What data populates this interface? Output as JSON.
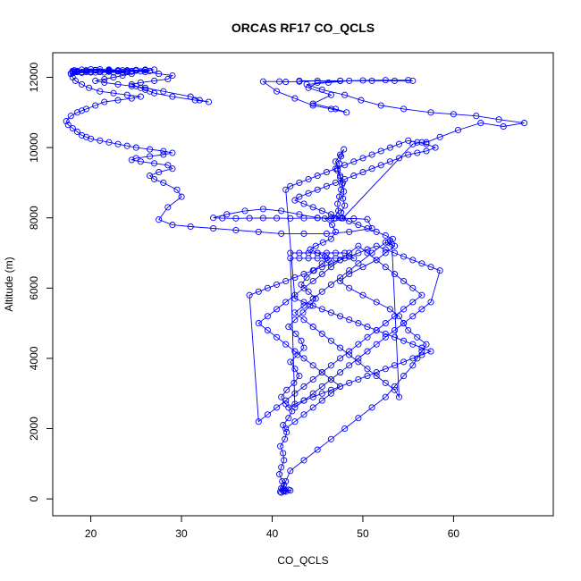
{
  "chart_data": {
    "type": "line",
    "title": "ORCAS RF17 CO_QCLS",
    "xlabel": "CO_QCLS",
    "ylabel": "Altitude (m)",
    "xlim": [
      15.8,
      71.0
    ],
    "ylim": [
      -480,
      12700
    ],
    "x_ticks": [
      20,
      30,
      40,
      50,
      60
    ],
    "y_ticks": [
      0,
      2000,
      4000,
      6000,
      8000,
      10000,
      12000
    ],
    "x_tick_labels": [
      "20",
      "30",
      "40",
      "50",
      "60"
    ],
    "y_tick_labels": [
      "0",
      "2000",
      "4000",
      "6000",
      "8000",
      "10000",
      "12000"
    ],
    "grid": false,
    "legend": "none",
    "colors": {
      "series": "#0000ff",
      "axis": "#000000",
      "background": "#ffffff"
    },
    "series": [
      {
        "marker": "open-circle",
        "x": [
          41.0,
          40.9,
          41.3,
          41.8,
          42.0,
          41.5,
          41.2,
          41.4,
          41.0,
          41.3,
          41.1,
          40.8,
          41.0,
          41.3,
          41.2,
          40.9,
          41.4,
          41.6,
          41.2,
          41.8,
          42.2,
          41.5,
          41.0,
          41.6,
          42.4,
          43.0,
          42.5,
          42.0,
          42.8,
          43.5,
          43.2,
          42.6,
          41.8,
          42.5,
          43.4,
          44.2,
          44.8,
          44.0,
          43.2,
          43.8,
          44.6,
          45.5,
          46.2,
          45.8,
          45.0,
          44.2,
          44.8,
          45.6,
          46.5,
          47.0,
          46.6,
          45.8,
          46.8,
          47.3,
          47.2,
          47.4,
          47.6,
          47.8,
          47.5,
          47.2,
          47.0,
          47.5,
          47.9,
          47.6,
          47.4,
          47.2,
          47.5,
          47.7,
          47.9,
          47.8,
          48.0,
          47.6,
          47.8,
          55.5,
          56.5,
          57.0,
          58.5,
          60.5,
          63.0,
          65.5,
          67.8,
          65.0,
          62.5,
          60.0,
          57.5,
          54.5,
          52.0,
          49.8,
          48.0,
          45.5,
          43.8,
          46.2,
          48.5,
          51.0,
          53.5,
          55.5,
          55.0,
          52.5,
          50.0,
          47.5,
          45.0,
          43.0,
          41.5,
          40.8,
          39.0,
          40.5,
          42.5,
          44.5,
          46.5,
          48.2,
          47.0,
          44.5,
          46.5,
          44.0,
          45.0,
          47.5,
          43.0
        ],
        "y": [
          180,
          200,
          220,
          260,
          240,
          210,
          230,
          250,
          300,
          400,
          500,
          700,
          900,
          1100,
          1300,
          1500,
          1700,
          1900,
          2100,
          2300,
          2500,
          2700,
          2900,
          3100,
          3300,
          3500,
          3700,
          3900,
          4100,
          4300,
          4500,
          4700,
          4900,
          5100,
          5300,
          5500,
          5700,
          5900,
          6100,
          6300,
          6500,
          6700,
          6800,
          6900,
          7000,
          7100,
          7200,
          7300,
          7400,
          7600,
          7800,
          7980,
          7980,
          8200,
          8400,
          8600,
          8800,
          9000,
          9200,
          9400,
          9600,
          9800,
          9950,
          9750,
          9550,
          9350,
          9150,
          8950,
          8750,
          8550,
          8350,
          8150,
          7990,
          10100,
          10150,
          10150,
          10300,
          10500,
          10700,
          10600,
          10700,
          10800,
          10900,
          10950,
          11000,
          11100,
          11200,
          11350,
          11500,
          11650,
          11800,
          11850,
          11900,
          11900,
          11900,
          11900,
          11920,
          11920,
          11910,
          11900,
          11900,
          11880,
          11870,
          11880,
          11880,
          11600,
          11400,
          11200,
          11100,
          11000,
          11100,
          11250,
          11500,
          11700,
          11850,
          11900,
          11900
        ]
      },
      {
        "marker": "open-circle",
        "x": [
          47.7,
          46.5,
          45.0,
          43.5,
          42.0,
          40.5,
          39.0,
          37.5,
          36.0,
          34.5,
          33.5,
          35.0,
          37.0,
          39.0,
          41.0,
          43.0,
          45.0,
          47.0,
          49.0,
          50.5,
          51.0,
          48.5,
          46.0,
          43.5,
          41.0,
          38.5,
          36.0,
          33.5,
          31.0,
          29.0,
          27.5,
          28.5,
          30.0,
          29.5,
          28.0,
          27.0,
          26.5,
          27.5,
          29.0,
          28.5,
          27.0,
          25.5,
          24.5,
          25.0,
          26.5,
          28.0,
          29.0,
          28.0,
          26.5,
          25.0,
          24.0,
          23.0,
          22.0,
          21.0,
          20.0,
          19.5,
          19.0,
          18.5,
          18.0,
          17.5,
          17.3,
          17.8,
          18.5,
          19.0,
          19.5,
          20.5,
          21.5,
          23.0,
          24.5,
          25.5,
          24.0,
          22.5,
          21.0,
          19.8,
          19.0,
          18.3,
          18.0,
          17.8,
          18.5,
          19.5,
          20.5,
          22.0,
          23.0,
          24.0,
          24.5,
          23.5,
          22.5,
          21.5,
          20.5,
          21.5,
          23.0,
          24.5,
          26.0,
          28.0,
          31.0,
          32.0,
          33.0,
          31.5,
          29.0,
          27.0,
          26.5,
          26.0,
          25.5,
          25.0,
          24.5,
          25.5,
          27.0,
          28.5,
          29.0,
          27.5,
          26.0,
          24.5,
          23.0,
          22.0,
          21.0,
          20.0,
          19.0,
          18.2,
          18.0,
          18.5,
          19.5,
          20.5,
          21.5,
          22.5,
          23.5,
          24.5,
          25.5,
          26.5,
          25.0,
          23.5,
          22.0,
          20.5,
          19.5,
          18.5,
          18.0,
          18.2,
          19.0,
          20.0,
          21.0,
          22.0,
          23.0,
          24.0,
          25.0,
          26.0,
          27.0,
          26.0,
          25.0,
          24.0,
          23.0,
          22.0,
          21.0,
          20.0,
          19.0,
          18.0,
          17.8
        ],
        "y": [
          7990,
          7990,
          7995,
          7990,
          7985,
          7990,
          7995,
          7990,
          7985,
          7990,
          8000,
          8100,
          8200,
          8250,
          8200,
          8100,
          8000,
          7990,
          7980,
          7960,
          7700,
          7600,
          7550,
          7550,
          7550,
          7600,
          7650,
          7700,
          7750,
          7800,
          7950,
          8300,
          8600,
          8800,
          9000,
          9100,
          9200,
          9300,
          9400,
          9500,
          9550,
          9600,
          9650,
          9700,
          9750,
          9800,
          9850,
          9900,
          9950,
          10000,
          10050,
          10100,
          10150,
          10200,
          10250,
          10300,
          10350,
          10450,
          10550,
          10650,
          10750,
          10900,
          11000,
          11050,
          11100,
          11200,
          11300,
          11350,
          11400,
          11450,
          11500,
          11550,
          11600,
          11700,
          11800,
          11900,
          12000,
          12100,
          12150,
          12180,
          12200,
          12200,
          12180,
          12150,
          12100,
          12050,
          12000,
          11950,
          11900,
          11850,
          11800,
          11750,
          11700,
          11600,
          11450,
          11350,
          11300,
          11350,
          11450,
          11550,
          11600,
          11650,
          11700,
          11750,
          11800,
          11850,
          11900,
          11950,
          12050,
          12100,
          12150,
          12180,
          12200,
          12220,
          12230,
          12230,
          12220,
          12200,
          12180,
          12160,
          12150,
          12140,
          12140,
          12140,
          12150,
          12160,
          12170,
          12180,
          12200,
          12200,
          12210,
          12210,
          12200,
          12180,
          12160,
          12150,
          12150,
          12160,
          12170,
          12180,
          12190,
          12200,
          12210,
          12220,
          12220,
          12200,
          12190,
          12180,
          12170,
          12160,
          12150,
          12140,
          12130,
          12120,
          12110
        ]
      },
      {
        "marker": "open-circle",
        "x": [
          41.2,
          41.5,
          42.0,
          43.5,
          45.0,
          46.5,
          48.0,
          49.5,
          51.0,
          52.5,
          53.5,
          54.5,
          55.5,
          56.0,
          56.5,
          57.0,
          56.0,
          55.0,
          54.5,
          54.0,
          53.0,
          51.5,
          50.0,
          48.5,
          47.5,
          48.5,
          50.0,
          51.5,
          52.5,
          53.5,
          52.5,
          51.0,
          49.5,
          48.5,
          47.5,
          46.5,
          45.5,
          44.5,
          43.5,
          42.5,
          43.5,
          44.5,
          45.5,
          46.5,
          47.5,
          48.5,
          49.5,
          50.5,
          51.5,
          52.5,
          53.5,
          54.0,
          53.2,
          52.8,
          53.0,
          53.3,
          52.5,
          51.5,
          50.5,
          49.5,
          48.5,
          47.5,
          46.5,
          45.5,
          44.5,
          43.5,
          42.5,
          43.0,
          44.0,
          45.0,
          46.0,
          47.0,
          48.0,
          49.0,
          50.0,
          51.0,
          52.0,
          53.0,
          54.0,
          55.0,
          56.0,
          57.0,
          58.0,
          57.0,
          56.0,
          55.0,
          54.0,
          53.0,
          52.0,
          51.0,
          50.0,
          49.0,
          48.0,
          47.0,
          46.0,
          45.0,
          44.0,
          43.0,
          42.0,
          41.5,
          42.5,
          43.5,
          44.5,
          45.5,
          46.5,
          47.5,
          48.5,
          49.5,
          50.5,
          51.5,
          52.5,
          53.5,
          54.5,
          55.5,
          56.5,
          57.5,
          56.5,
          55.5,
          54.5,
          53.5,
          52.5,
          51.5,
          50.5,
          49.5,
          48.5,
          47.5,
          46.5,
          45.5,
          44.5,
          43.5,
          42.5,
          41.8
        ],
        "y": [
          300,
          500,
          800,
          1100,
          1400,
          1700,
          2000,
          2300,
          2600,
          2900,
          3200,
          3500,
          3800,
          4000,
          4200,
          4400,
          4600,
          4800,
          5000,
          5200,
          5400,
          5600,
          5800,
          6000,
          6200,
          6400,
          6600,
          6800,
          7000,
          7200,
          7300,
          7000,
          6700,
          6500,
          6300,
          6100,
          5900,
          5700,
          5500,
          5300,
          5100,
          4900,
          4700,
          4500,
          4300,
          4100,
          3900,
          3700,
          3500,
          3300,
          3100,
          2900,
          7250,
          7300,
          7350,
          7400,
          7500,
          7600,
          7700,
          7800,
          7900,
          8000,
          8100,
          8200,
          8300,
          8400,
          8500,
          8600,
          8700,
          8800,
          8900,
          9000,
          9100,
          9200,
          9300,
          9400,
          9500,
          9600,
          9700,
          9800,
          9850,
          9900,
          10000,
          10100,
          10150,
          10200,
          10100,
          10000,
          9900,
          9800,
          9700,
          9600,
          9500,
          9400,
          9300,
          9200,
          9100,
          9000,
          8900,
          8800,
          5700,
          5600,
          5500,
          5400,
          5300,
          5200,
          5100,
          5000,
          4900,
          4800,
          4700,
          4600,
          4500,
          4400,
          4300,
          4200,
          4100,
          4000,
          3900,
          3800,
          3700,
          3600,
          3500,
          3400,
          3300,
          3200,
          3100,
          3000,
          2900,
          2800,
          2700,
          2600
        ]
      },
      {
        "marker": "open-circle",
        "x": [
          41.5,
          42.5,
          43.5,
          44.5,
          45.5,
          46.5,
          47.5,
          46.5,
          45.5,
          44.5,
          43.5,
          42.5,
          41.5,
          40.5,
          39.5,
          38.5,
          39.5,
          40.5,
          41.5,
          42.5,
          43.5,
          44.5,
          45.5,
          46.5,
          47.5,
          48.5,
          49.5,
          50.5,
          51.5,
          52.5,
          53.5,
          54.5,
          55.5,
          56.5,
          55.5,
          54.5,
          53.5,
          52.5,
          51.5,
          50.5,
          49.5,
          48.5,
          47.5,
          46.5,
          45.5,
          44.5,
          43.5,
          42.5,
          41.5,
          40.5,
          39.5,
          38.5,
          37.5,
          38.5,
          39.5,
          40.5,
          41.5,
          42.5,
          43.5,
          44.5,
          45.5,
          46.5,
          47.5,
          48.5,
          49.5,
          50.5,
          51.5,
          52.5,
          53.5,
          54.5,
          55.5,
          56.5,
          57.5,
          58.5,
          57.5,
          56.5,
          55.5,
          54.5,
          53.5,
          52.5,
          51.5,
          50.5,
          49.5,
          48.5,
          47.5,
          46.5,
          45.5,
          44.5,
          43.5,
          42.5,
          42.0,
          43.0,
          44.0,
          45.0,
          46.0,
          47.0,
          48.0,
          49.0,
          48.0,
          47.0,
          46.0,
          45.0,
          44.0,
          43.0,
          42.0
        ],
        "y": [
          2000,
          2200,
          2400,
          2600,
          2800,
          3000,
          3200,
          3400,
          3600,
          3800,
          4000,
          4200,
          4400,
          4600,
          4800,
          5000,
          5200,
          5400,
          5600,
          5800,
          6000,
          6200,
          6400,
          6600,
          6800,
          7000,
          7200,
          7000,
          6800,
          6600,
          6400,
          6200,
          6000,
          5800,
          5600,
          5400,
          5200,
          5000,
          4800,
          4600,
          4400,
          4200,
          4000,
          3800,
          3600,
          3400,
          3200,
          3000,
          2800,
          2600,
          2400,
          2200,
          5800,
          5900,
          6000,
          6100,
          6200,
          6300,
          6400,
          6500,
          6600,
          6700,
          6800,
          6900,
          7000,
          7100,
          7200,
          7100,
          7000,
          6900,
          6800,
          6700,
          6600,
          6500,
          5600,
          5400,
          5200,
          5000,
          4800,
          4600,
          4400,
          4200,
          4000,
          3800,
          3600,
          3400,
          3200,
          3000,
          2800,
          2600,
          6850,
          6850,
          6850,
          6850,
          6850,
          6850,
          6850,
          6850,
          7000,
          7000,
          7000,
          7000,
          7000,
          7000,
          7000
        ]
      }
    ]
  }
}
